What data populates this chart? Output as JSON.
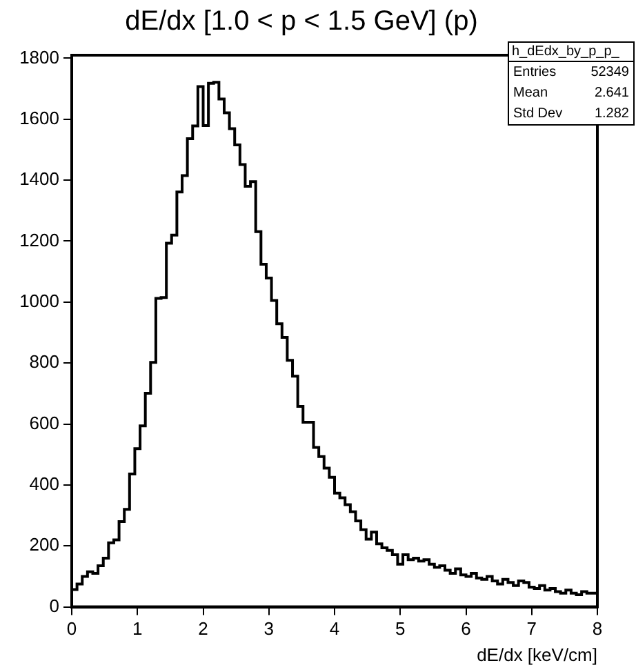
{
  "chart_data": {
    "type": "histogram",
    "title": "dE/dx [1.0 < p < 1.5 GeV] (p)",
    "xlabel": "dE/dx [keV/cm]",
    "bins": [
      0,
      0.08,
      0.16,
      0.24,
      0.32,
      0.4,
      0.48,
      0.56,
      0.64,
      0.72,
      0.8,
      0.88,
      0.96,
      1.04,
      1.12,
      1.2,
      1.28,
      1.36,
      1.44,
      1.52,
      1.6,
      1.68,
      1.76,
      1.84,
      1.92,
      2,
      2.08,
      2.16,
      2.24,
      2.32,
      2.4,
      2.48,
      2.56,
      2.64,
      2.72,
      2.8,
      2.88,
      2.96,
      3.04,
      3.12,
      3.2,
      3.28,
      3.36,
      3.44,
      3.52,
      3.6,
      3.68,
      3.76,
      3.84,
      3.92,
      4,
      4.08,
      4.16,
      4.24,
      4.32,
      4.4,
      4.48,
      4.56,
      4.64,
      4.72,
      4.8,
      4.88,
      4.96,
      5.04,
      5.12,
      5.2,
      5.28,
      5.36,
      5.44,
      5.52,
      5.6,
      5.68,
      5.76,
      5.84,
      5.92,
      6,
      6.08,
      6.16,
      6.24,
      6.32,
      6.4,
      6.48,
      6.56,
      6.64,
      6.72,
      6.8,
      6.88,
      6.96,
      7.04,
      7.12,
      7.2,
      7.28,
      7.36,
      7.44,
      7.52,
      7.6,
      7.68,
      7.76,
      7.84,
      7.92,
      8
    ],
    "values": [
      57,
      75,
      100,
      115,
      110,
      135,
      160,
      210,
      220,
      280,
      320,
      436,
      519,
      594,
      701,
      802,
      1012,
      1015,
      1193,
      1220,
      1361,
      1415,
      1536,
      1578,
      1707,
      1579,
      1718,
      1721,
      1666,
      1621,
      1569,
      1516,
      1451,
      1380,
      1395,
      1231,
      1124,
      1079,
      1005,
      929,
      884,
      809,
      757,
      658,
      606,
      606,
      523,
      493,
      455,
      425,
      373,
      358,
      335,
      312,
      282,
      253,
      222,
      245,
      207,
      194,
      185,
      171,
      140,
      171,
      155,
      160,
      150,
      155,
      140,
      130,
      135,
      120,
      110,
      125,
      105,
      100,
      110,
      95,
      90,
      100,
      85,
      75,
      90,
      80,
      70,
      85,
      80,
      65,
      60,
      70,
      55,
      60,
      50,
      45,
      55,
      45,
      40,
      50,
      45,
      45
    ],
    "color": "#000000",
    "xlim": [
      0,
      8
    ],
    "ylim": [
      0,
      1810
    ],
    "xticks": [
      0,
      1,
      2,
      3,
      4,
      5,
      6,
      7,
      8
    ],
    "yticks": [
      0,
      200,
      400,
      600,
      800,
      1000,
      1200,
      1400,
      1600,
      1800
    ],
    "grid": false,
    "legend": false,
    "annotations": [
      "h_dEdx_by_p_p_",
      "Entries",
      "52349",
      "Mean",
      "2.641",
      "Std Dev",
      "1.282"
    ]
  }
}
